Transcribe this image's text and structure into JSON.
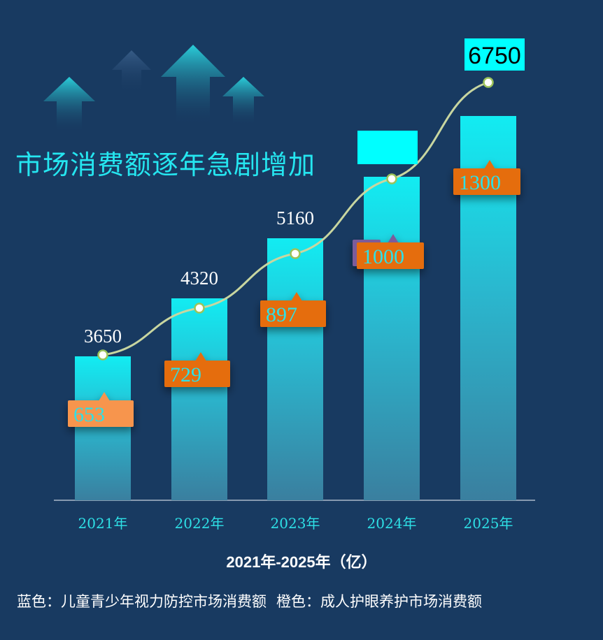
{
  "chart_data": {
    "type": "bar",
    "title": "市场消费额逐年急剧增加",
    "xlabel": "2021年-2025年（亿）",
    "categories": [
      "2021年",
      "2022年",
      "2023年",
      "2024年",
      "2025年"
    ],
    "series": [
      {
        "name": "儿童青少年视力防控市场消费额",
        "color": "#18e6ee",
        "values": [
          3650,
          4320,
          5160,
          null,
          6750
        ]
      },
      {
        "name": "成人护眼养护市场消费额",
        "color": "#e56d10",
        "values": [
          653,
          729,
          897,
          1000,
          1300
        ]
      }
    ],
    "ylim": [
      0,
      7000
    ],
    "legend": {
      "blue": "蓝色：儿童青少年视力防控市场消费额",
      "orange": "橙色：成人护眼养护市场消费额"
    }
  },
  "colors": {
    "background": "#183a61",
    "bar_top": "#12ecf2",
    "bar_bottom": "#2f7f9c",
    "label_orange": "#e56d10",
    "label_orange_light": "#f7954e",
    "line": "#c8d6a0",
    "highlight_box": "#00ffff"
  }
}
